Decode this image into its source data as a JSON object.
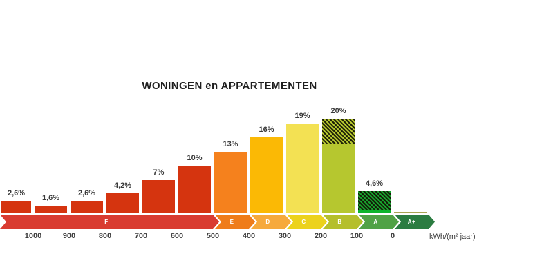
{
  "title": "WONINGEN en APPARTEMENTEN",
  "chart_data": {
    "type": "bar",
    "title": "WONINGEN en APPARTEMENTEN",
    "subtitle": "",
    "xlabel": "kWh/(m² jaar)",
    "ylabel": "",
    "unit_label": "kWh/(m² jaar)",
    "x_axis_direction": "descending",
    "x_ticks": [
      "1000",
      "900",
      "800",
      "700",
      "600",
      "500",
      "400",
      "300",
      "200",
      "100",
      "0"
    ],
    "grid": "off",
    "legend": "none",
    "bars": [
      {
        "label": "2,6%",
        "value": 2.6,
        "color": "#d5340f",
        "band": "F"
      },
      {
        "label": "1,6%",
        "value": 1.6,
        "color": "#d5340f",
        "band": "F"
      },
      {
        "label": "2,6%",
        "value": 2.6,
        "color": "#d5340f",
        "band": "F"
      },
      {
        "label": "4,2%",
        "value": 4.2,
        "color": "#d5340f",
        "band": "F"
      },
      {
        "label": "7%",
        "value": 7,
        "color": "#d5340f",
        "band": "F"
      },
      {
        "label": "10%",
        "value": 10,
        "color": "#d5340f",
        "band": "F"
      },
      {
        "label": "13%",
        "value": 13,
        "color": "#f5811d",
        "band": "E"
      },
      {
        "label": "16%",
        "value": 16,
        "color": "#fbb905",
        "band": "D"
      },
      {
        "label": "19%",
        "value": 19,
        "color": "#f3e153",
        "band": "C"
      },
      {
        "label": "20%",
        "value": 20,
        "color": "#b6c72f",
        "band": "B",
        "hatch_pct": 5.3
      },
      {
        "label": "4,6%",
        "value": 4.6,
        "color": "#17a22d",
        "band": "A",
        "hatch_pct": 4.0,
        "solid_bottom_color": "#0db52c"
      },
      {
        "label": "",
        "value": 0.25,
        "color": "#a9a553",
        "band": "A+"
      }
    ],
    "scale_segments": [
      {
        "letter": "F",
        "color": "#d93b30",
        "cells": 6
      },
      {
        "letter": "E",
        "color": "#ef7c1a",
        "cells": 1
      },
      {
        "letter": "D",
        "color": "#f6a93c",
        "cells": 1
      },
      {
        "letter": "C",
        "color": "#ecd21c",
        "cells": 1
      },
      {
        "letter": "B",
        "color": "#b5bf2b",
        "cells": 1
      },
      {
        "letter": "A",
        "color": "#50a245",
        "cells": 1
      },
      {
        "letter": "A+",
        "color": "#2b7c41",
        "cells": 1
      }
    ]
  }
}
